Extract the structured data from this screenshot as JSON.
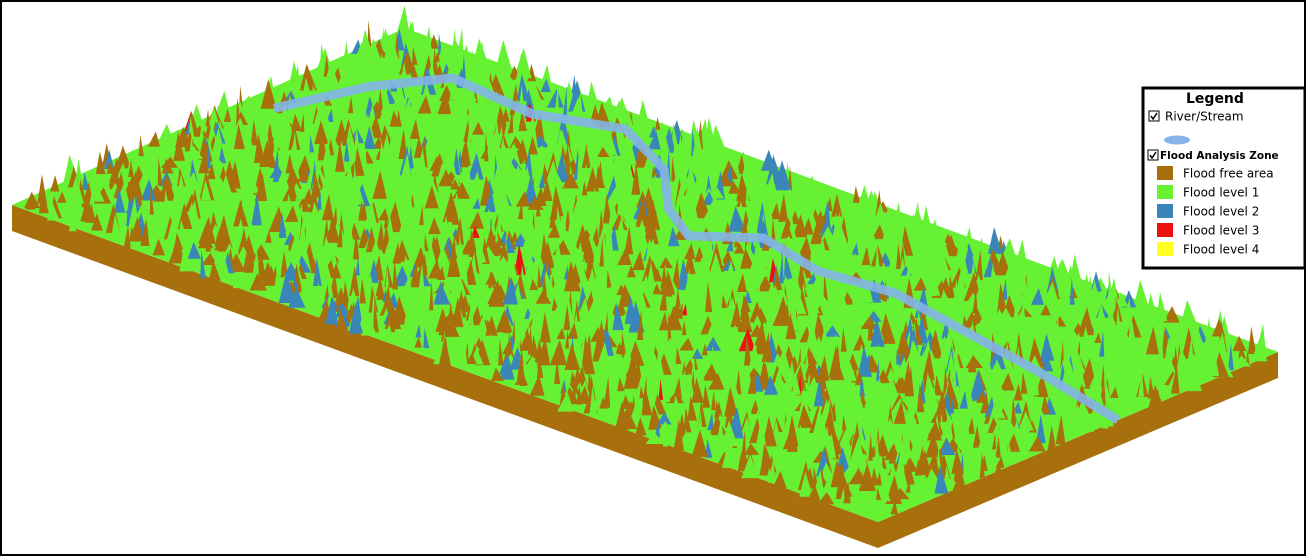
{
  "legend": {
    "title": "Legend",
    "layers": [
      {
        "name": "River/Stream",
        "color": "#84b4e8"
      },
      {
        "name": "Flood Analysis Zone",
        "classes": [
          {
            "label": "Flood free area",
            "color": "#a8700c"
          },
          {
            "label": "Flood level 1",
            "color": "#66f233"
          },
          {
            "label": "Flood level 2",
            "color": "#3a86b8"
          },
          {
            "label": "Flood level 3",
            "color": "#ee1111"
          },
          {
            "label": "Flood level 4",
            "color": "#ffff22"
          }
        ]
      }
    ]
  }
}
